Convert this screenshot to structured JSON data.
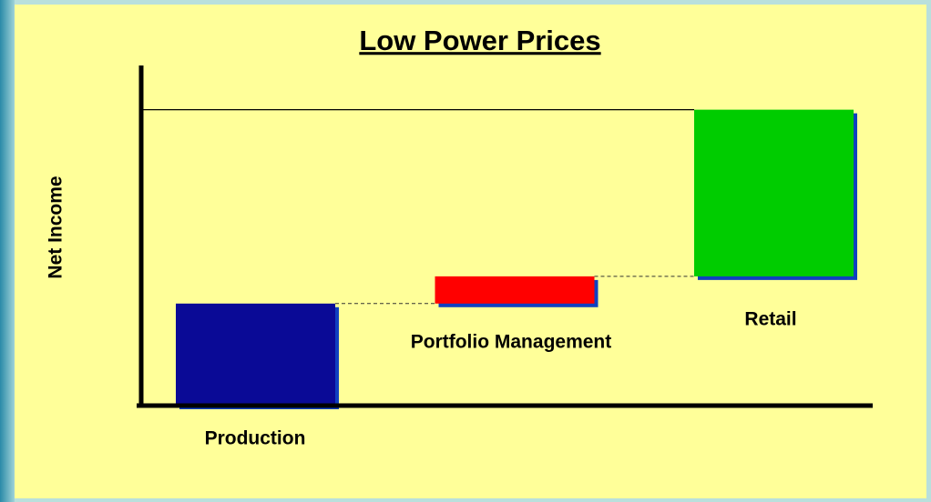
{
  "chart_data": {
    "type": "waterfall",
    "title": "Low Power Prices",
    "y_label": "Net Income",
    "categories": [
      "Production",
      "Portfolio Management",
      "Retail"
    ],
    "values": [
      30,
      8,
      49
    ],
    "colors": [
      "#0a0a96",
      "#ff0000",
      "#00cc00"
    ],
    "ylim": [
      0,
      100
    ],
    "reference_line": 87
  }
}
